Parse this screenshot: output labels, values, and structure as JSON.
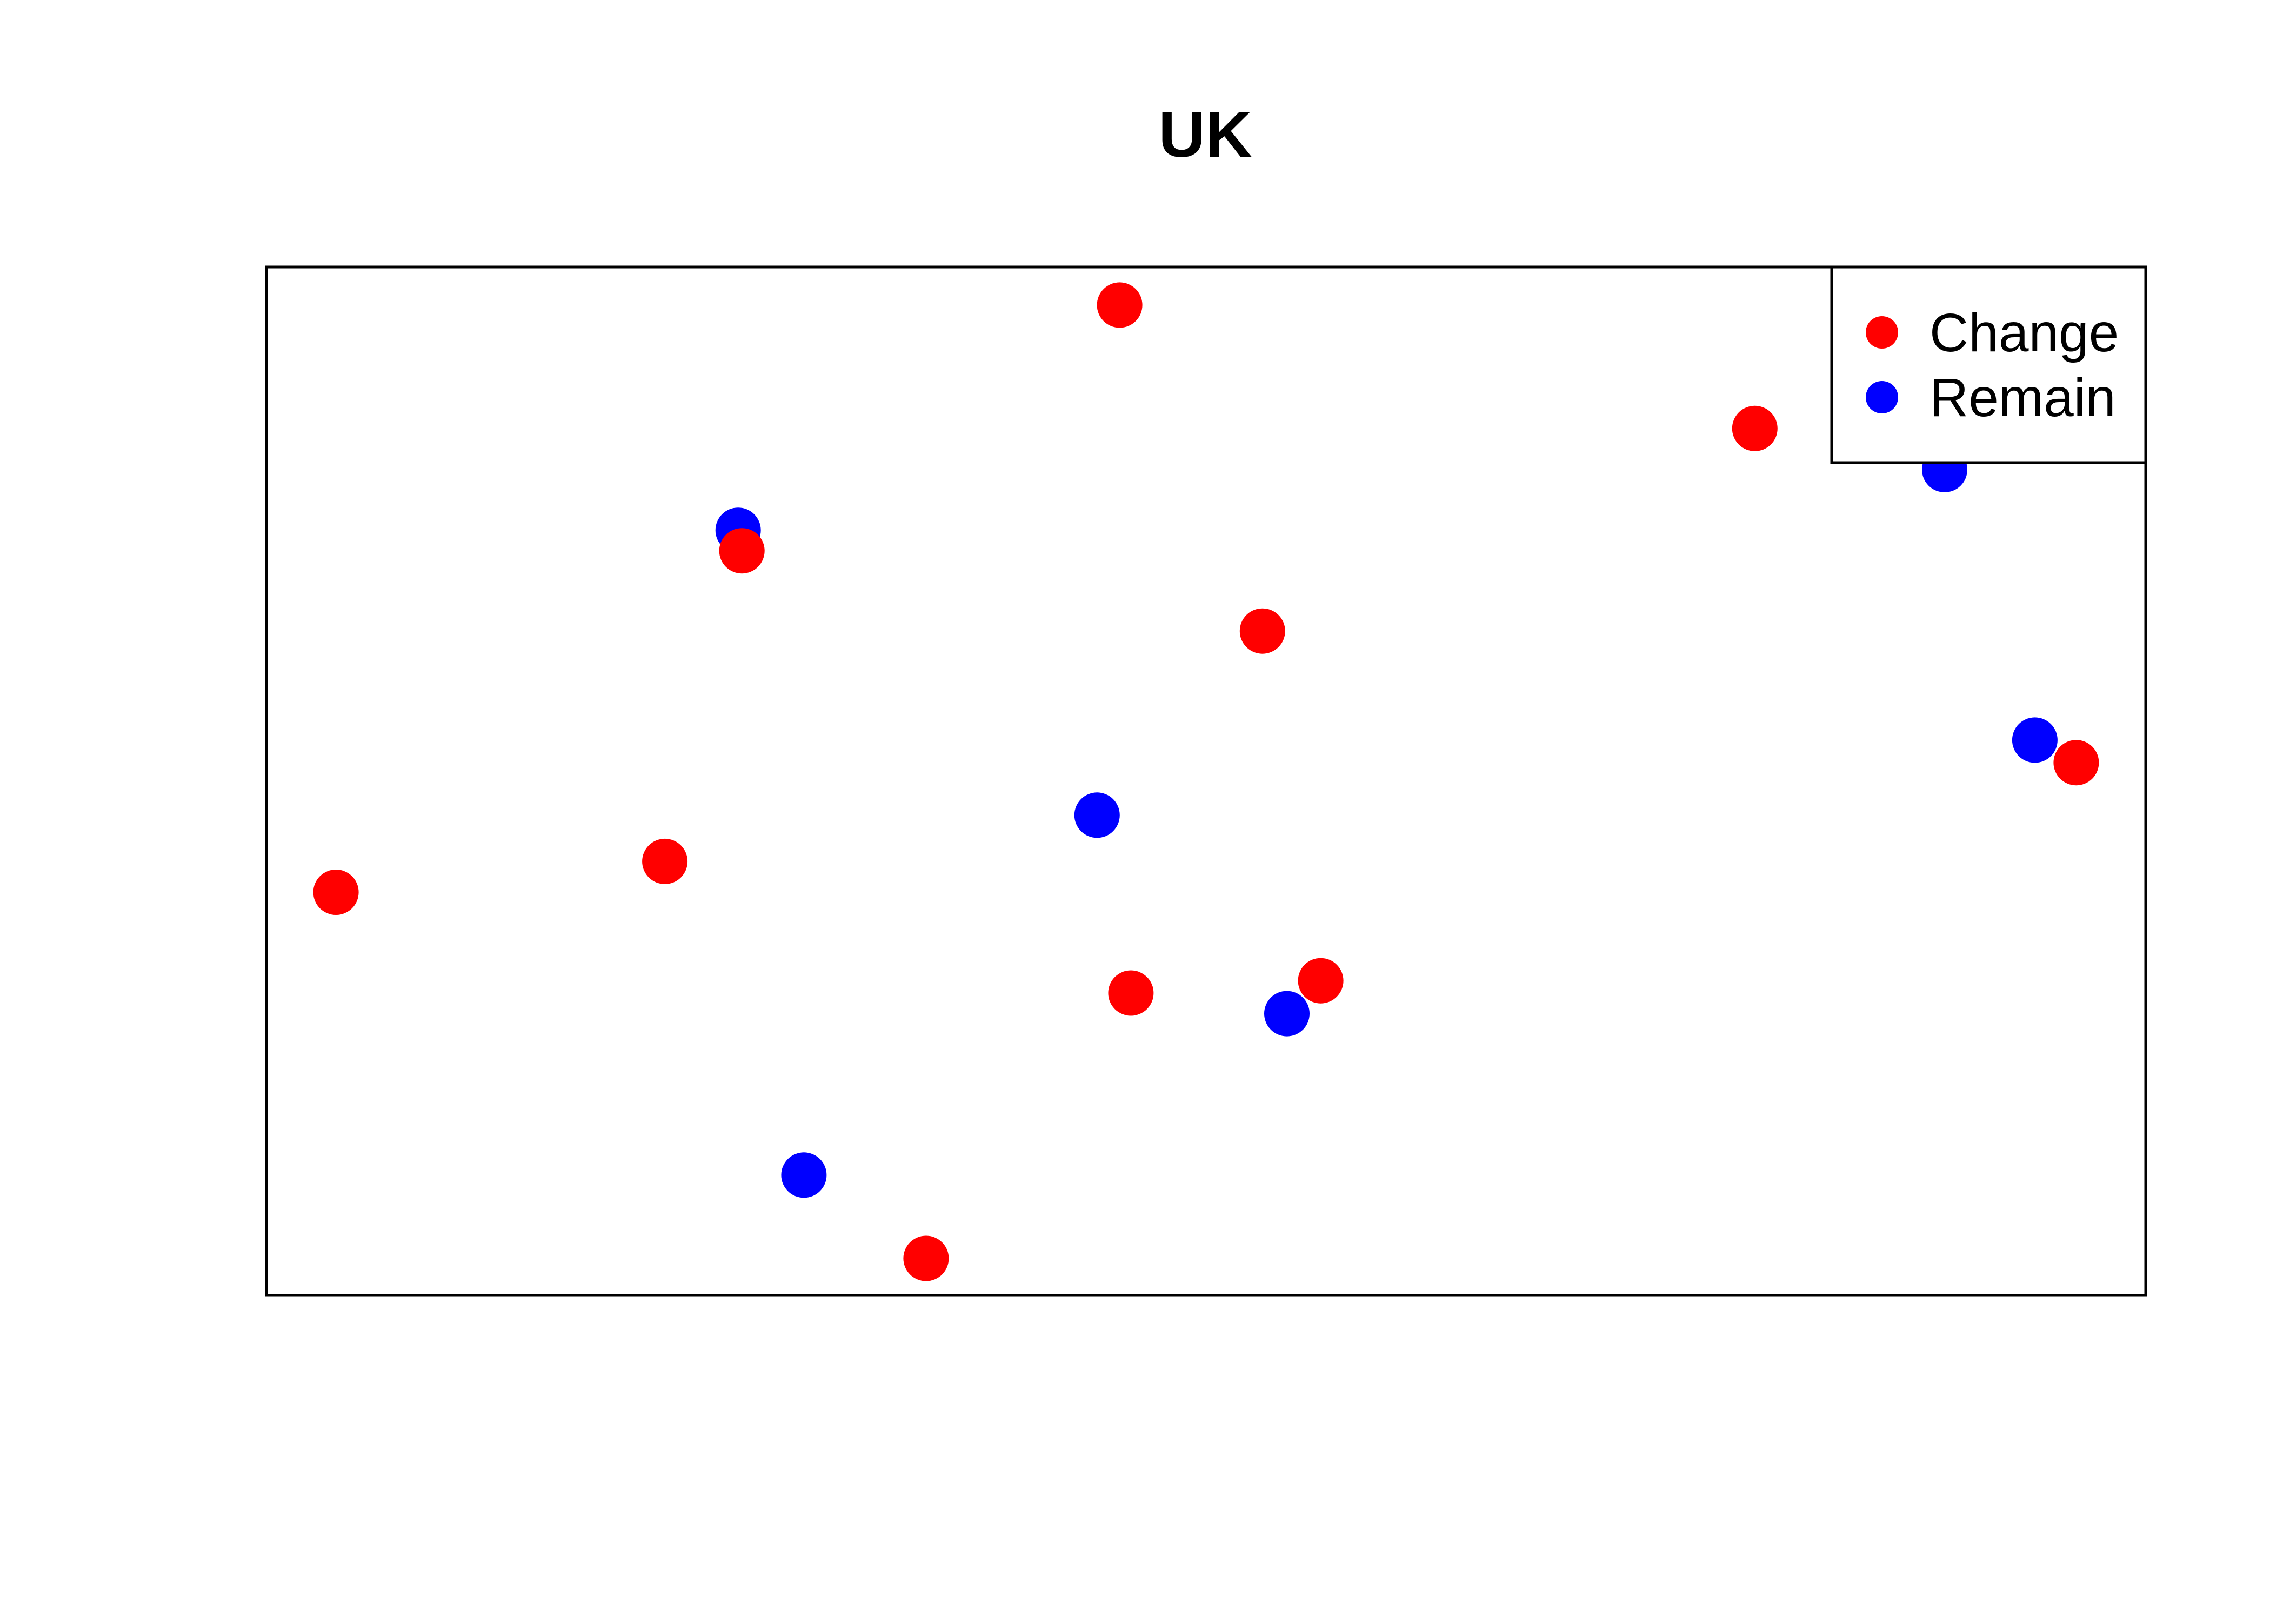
{
  "chart_data": {
    "type": "scatter",
    "title": "UK",
    "xlabel": "",
    "ylabel": "",
    "axes_shown": false,
    "grid": false,
    "legend_position": "top-right",
    "series": [
      {
        "name": "Change",
        "color": "#ff0000",
        "points": [
          {
            "x": 0.454,
            "y": 0.963
          },
          {
            "x": 0.792,
            "y": 0.843
          },
          {
            "x": 0.253,
            "y": 0.724
          },
          {
            "x": 0.53,
            "y": 0.646
          },
          {
            "x": 0.963,
            "y": 0.518
          },
          {
            "x": 0.037,
            "y": 0.392
          },
          {
            "x": 0.212,
            "y": 0.422
          },
          {
            "x": 0.46,
            "y": 0.294
          },
          {
            "x": 0.561,
            "y": 0.306
          },
          {
            "x": 0.351,
            "y": 0.036
          }
        ]
      },
      {
        "name": "Remain",
        "color": "#0000ff",
        "points": [
          {
            "x": 0.251,
            "y": 0.744
          },
          {
            "x": 0.893,
            "y": 0.803
          },
          {
            "x": 0.941,
            "y": 0.54
          },
          {
            "x": 0.442,
            "y": 0.467
          },
          {
            "x": 0.543,
            "y": 0.274
          },
          {
            "x": 0.286,
            "y": 0.117
          }
        ]
      }
    ],
    "xlim": [
      0,
      1
    ],
    "ylim": [
      0,
      1
    ]
  }
}
